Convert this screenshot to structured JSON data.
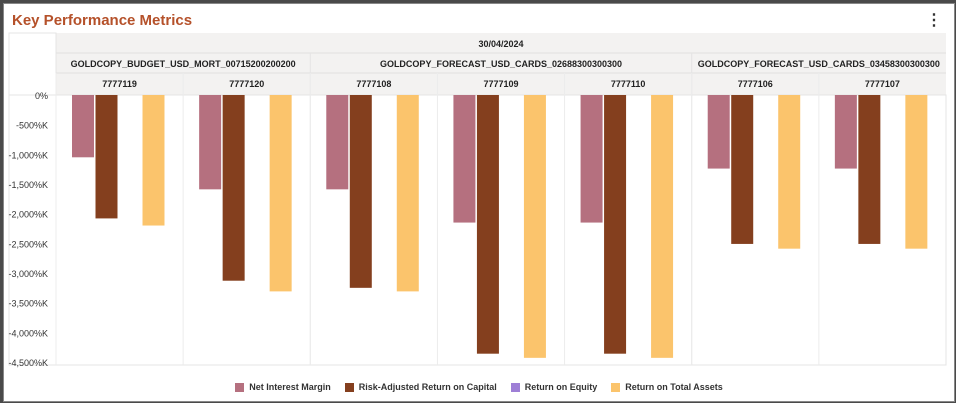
{
  "title": "Key Performance Metrics",
  "menu_icon": "more-vertical-icon",
  "chart_data": {
    "type": "bar",
    "date": "30/04/2024",
    "groups": [
      {
        "name": "GOLDCOPY_BUDGET_USD_MORT_00715200200200",
        "categories": [
          "7777119",
          "7777120"
        ]
      },
      {
        "name": "GOLDCOPY_FORECAST_USD_CARDS_02688300300300",
        "categories": [
          "7777108",
          "7777109",
          "7777110"
        ]
      },
      {
        "name": "GOLDCOPY_FORECAST_USD_CARDS_03458300300300",
        "categories": [
          "7777106",
          "7777107"
        ]
      }
    ],
    "categories": [
      "7777119",
      "7777120",
      "7777108",
      "7777109",
      "7777110",
      "7777106",
      "7777107"
    ],
    "series": [
      {
        "name": "Net Interest Margin",
        "color": "#b5707f",
        "values": [
          -1050,
          -1590,
          -1590,
          -2150,
          -2150,
          -1240,
          -1240
        ]
      },
      {
        "name": "Risk-Adjusted Return on Capital",
        "color": "#843f1e",
        "values": [
          -2080,
          -3130,
          -3250,
          -4360,
          -4360,
          -2510,
          -2510
        ]
      },
      {
        "name": "Return on Equity",
        "color": "#9e7fd6",
        "values": [
          0,
          0,
          0,
          0,
          0,
          0,
          0
        ]
      },
      {
        "name": "Return on Total Assets",
        "color": "#fbc46c",
        "values": [
          -2200,
          -3310,
          -3310,
          -4430,
          -4430,
          -2590,
          -2590
        ]
      }
    ],
    "yticks": [
      "0%",
      "-500%K",
      "-1,000%K",
      "-1,500%K",
      "-2,000%K",
      "-2,500%K",
      "-3,000%K",
      "-3,500%K",
      "-4,000%K",
      "-4,500%K"
    ],
    "ylim": [
      -4500,
      0
    ],
    "legend": "bottom"
  }
}
